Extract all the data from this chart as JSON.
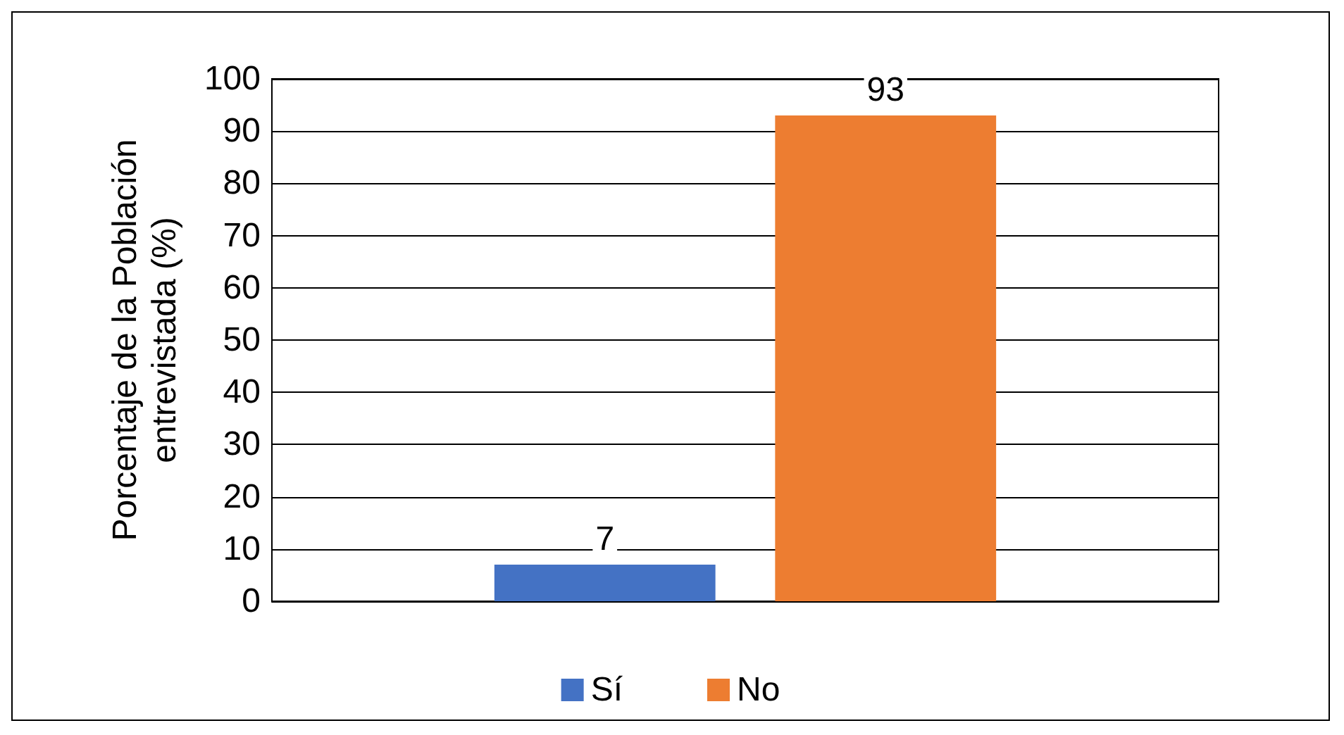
{
  "chart_data": {
    "type": "bar",
    "ylabel": "Porcentaje de la Población entrevistada (%)",
    "categories": [
      null
    ],
    "series": [
      {
        "name": "Sí",
        "color": "#4472c4",
        "values": [
          7
        ]
      },
      {
        "name": "No",
        "color": "#ed7d31",
        "values": [
          93
        ]
      }
    ],
    "ylim": [
      0,
      100
    ],
    "yticks": [
      0,
      10,
      20,
      30,
      40,
      50,
      60,
      70,
      80,
      90,
      100
    ],
    "grid": "y",
    "legend": "bottom",
    "data_labels": true
  }
}
